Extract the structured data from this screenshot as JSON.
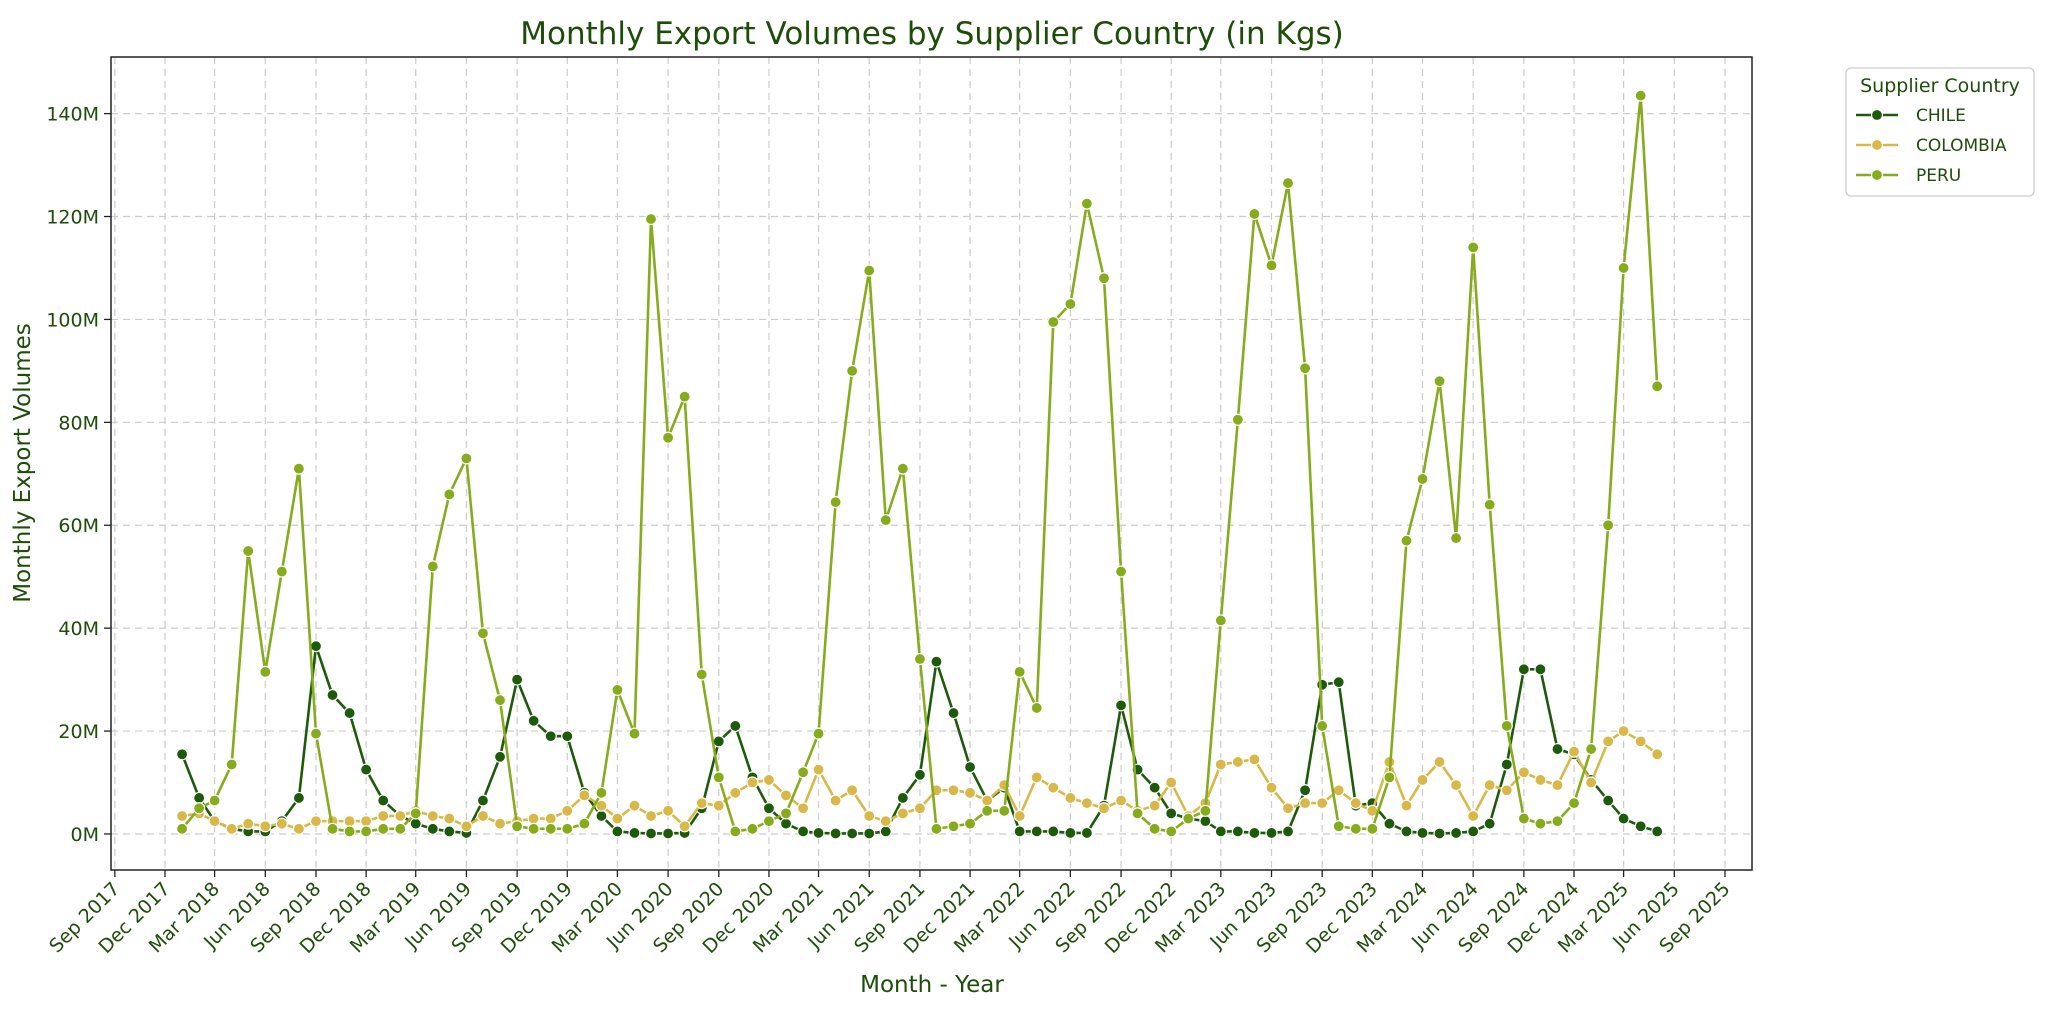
{
  "chart_data": {
    "type": "line",
    "title": "Monthly Export Volumes by Supplier Country (in Kgs)",
    "xlabel": "Month - Year",
    "ylabel": "Monthly Export Volumes",
    "ylim": [
      -7,
      151
    ],
    "y_ticks": [
      0,
      20,
      40,
      60,
      80,
      100,
      120,
      140
    ],
    "y_tick_labels": [
      "0M",
      "20M",
      "40M",
      "60M",
      "80M",
      "100M",
      "120M",
      "140M"
    ],
    "y_unit": "M (millions of Kgs)",
    "x_ticks": [
      "2017-09",
      "2017-12",
      "2018-03",
      "2018-06",
      "2018-09",
      "2018-12",
      "2019-03",
      "2019-06",
      "2019-09",
      "2019-12",
      "2020-03",
      "2020-06",
      "2020-09",
      "2020-12",
      "2021-03",
      "2021-06",
      "2021-09",
      "2021-12",
      "2022-03",
      "2022-06",
      "2022-09",
      "2022-12",
      "2023-03",
      "2023-06",
      "2023-09",
      "2023-12",
      "2024-03",
      "2024-06",
      "2024-09",
      "2024-12",
      "2025-03",
      "2025-06",
      "2025-09"
    ],
    "x_tick_labels": [
      "Sep 2017",
      "Dec 2017",
      "Mar 2018",
      "Jun 2018",
      "Sep 2018",
      "Dec 2018",
      "Mar 2019",
      "Jun 2019",
      "Sep 2019",
      "Dec 2019",
      "Mar 2020",
      "Jun 2020",
      "Sep 2020",
      "Dec 2020",
      "Mar 2021",
      "Jun 2021",
      "Sep 2021",
      "Dec 2021",
      "Mar 2022",
      "Jun 2022",
      "Sep 2022",
      "Dec 2022",
      "Mar 2023",
      "Jun 2023",
      "Sep 2023",
      "Dec 2023",
      "Mar 2024",
      "Jun 2024",
      "Sep 2024",
      "Dec 2024",
      "Mar 2025",
      "Jun 2025",
      "Sep 2025"
    ],
    "xlim": [
      "2017-08-25",
      "2025-10-20"
    ],
    "x": [
      "2018-01",
      "2018-02",
      "2018-03",
      "2018-04",
      "2018-05",
      "2018-06",
      "2018-07",
      "2018-08",
      "2018-09",
      "2018-10",
      "2018-11",
      "2018-12",
      "2019-01",
      "2019-02",
      "2019-03",
      "2019-04",
      "2019-05",
      "2019-06",
      "2019-07",
      "2019-08",
      "2019-09",
      "2019-10",
      "2019-11",
      "2019-12",
      "2020-01",
      "2020-02",
      "2020-03",
      "2020-04",
      "2020-05",
      "2020-06",
      "2020-07",
      "2020-08",
      "2020-09",
      "2020-10",
      "2020-11",
      "2020-12",
      "2021-01",
      "2021-02",
      "2021-03",
      "2021-04",
      "2021-05",
      "2021-06",
      "2021-07",
      "2021-08",
      "2021-09",
      "2021-10",
      "2021-11",
      "2021-12",
      "2022-01",
      "2022-02",
      "2022-03",
      "2022-04",
      "2022-05",
      "2022-06",
      "2022-07",
      "2022-08",
      "2022-09",
      "2022-10",
      "2022-11",
      "2022-12",
      "2023-01",
      "2023-02",
      "2023-03",
      "2023-04",
      "2023-05",
      "2023-06",
      "2023-07",
      "2023-08",
      "2023-09",
      "2023-10",
      "2023-11",
      "2023-12",
      "2024-01",
      "2024-02",
      "2024-03",
      "2024-04",
      "2024-05",
      "2024-06",
      "2024-07",
      "2024-08",
      "2024-09",
      "2024-10",
      "2024-11",
      "2024-12",
      "2025-01",
      "2025-02",
      "2025-03",
      "2025-04",
      "2025-05",
      "2025-06"
    ],
    "series": [
      {
        "name": "CHILE",
        "color": "#1e5a0c",
        "values": [
          15.5,
          7,
          2.5,
          1,
          0.5,
          0.5,
          2.5,
          7,
          36.5,
          27,
          23.5,
          12.5,
          6.5,
          3.5,
          2,
          1,
          0.5,
          0.2,
          6.5,
          15,
          30,
          22,
          19,
          19,
          8,
          3.5,
          0.5,
          0.2,
          0.1,
          0.1,
          0.2,
          5,
          18,
          21,
          11,
          5,
          2,
          0.5,
          0.2,
          0.1,
          0.1,
          0.1,
          0.5,
          7,
          11.5,
          33.5,
          23.5,
          13,
          6.5,
          9,
          0.5,
          0.5,
          0.5,
          0.2,
          0.2,
          5.5,
          25,
          12.5,
          9,
          4,
          3,
          2.5,
          0.5,
          0.5,
          0.2,
          0.2,
          0.5,
          8.5,
          29,
          29.5,
          5.5,
          6,
          2,
          0.5,
          0.2,
          0.1,
          0.2,
          0.5,
          2,
          13.5,
          32,
          32,
          16.5,
          15.5,
          10.5,
          6.5,
          3,
          1.5,
          0.5,
          null
        ]
      },
      {
        "name": "COLOMBIA",
        "color": "#d9b84a",
        "values": [
          3.5,
          4,
          2.5,
          1,
          2,
          1.5,
          2,
          1,
          2.5,
          2.5,
          2.5,
          2.5,
          3.5,
          3.5,
          4.5,
          3.5,
          3,
          1.5,
          3.5,
          2,
          2.5,
          3,
          3,
          4.5,
          7.5,
          5.5,
          3,
          5.5,
          3.5,
          4.5,
          1.5,
          6,
          5.5,
          8,
          10,
          10.5,
          7.5,
          5,
          12.5,
          6.5,
          8.5,
          3.5,
          2.5,
          4,
          5,
          8.5,
          8.5,
          8,
          6.5,
          9.5,
          3.5,
          11,
          9,
          7,
          6,
          5,
          6.5,
          4.5,
          5.5,
          10,
          3.5,
          6,
          13.5,
          14,
          14.5,
          9,
          5,
          6,
          6,
          8.5,
          6,
          4.5,
          14,
          5.5,
          10.5,
          14,
          9.5,
          3.5,
          9.5,
          8.5,
          12,
          10.5,
          9.5,
          16,
          10,
          18,
          20,
          18,
          15.5,
          null
        ]
      },
      {
        "name": "PERU",
        "color": "#86ac1e",
        "values": [
          1,
          5,
          6.5,
          13.5,
          55,
          31.5,
          51,
          71,
          19.5,
          1,
          0.5,
          0.5,
          1,
          1,
          4,
          52,
          66,
          73,
          39,
          26,
          1.5,
          1,
          1,
          1,
          2,
          8,
          28,
          19.5,
          119.5,
          77,
          85,
          31,
          11,
          0.5,
          1,
          2.5,
          4,
          12,
          19.5,
          64.5,
          90,
          109.5,
          61,
          71,
          34,
          1,
          1.5,
          2,
          4.5,
          4.5,
          31.5,
          24.5,
          99.5,
          103,
          122.5,
          108,
          51,
          4,
          1,
          0.5,
          3,
          4.5,
          41.5,
          80.5,
          120.5,
          110.5,
          126.5,
          90.5,
          21,
          1.5,
          1,
          1,
          11,
          57,
          69,
          88,
          57.5,
          114,
          64,
          21,
          3,
          2,
          2.5,
          6,
          16.5,
          60,
          110,
          143.5,
          87,
          null
        ]
      }
    ],
    "legend": {
      "title": "Supplier Country",
      "placement": "outside top-right"
    },
    "grid": true
  }
}
